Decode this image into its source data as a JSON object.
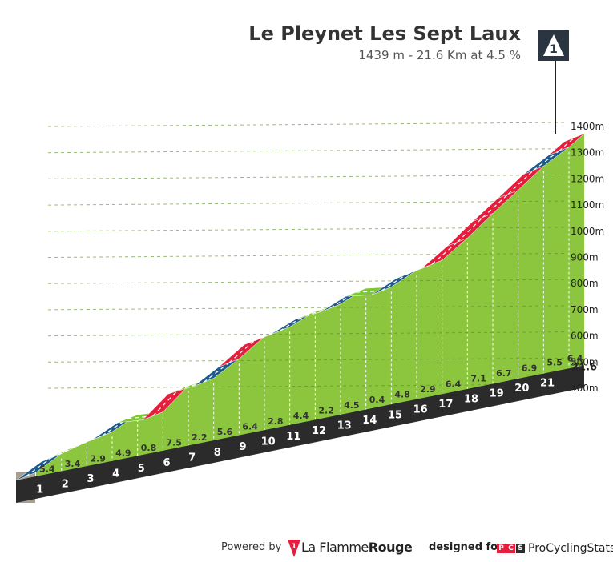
{
  "header": {
    "title": "Le Pleynet Les Sept Laux",
    "subtitle": "1439 m - 21.6 Km at 4.5 %",
    "category": "1"
  },
  "chart_data": {
    "type": "area",
    "title": "Le Pleynet Les Sept Laux",
    "xlabel": "",
    "ylabel": "",
    "km_labels": [
      "1",
      "2",
      "3",
      "4",
      "5",
      "6",
      "7",
      "8",
      "9",
      "10",
      "11",
      "12",
      "13",
      "14",
      "15",
      "16",
      "17",
      "18",
      "19",
      "20",
      "21"
    ],
    "end_label": "21.6",
    "gradients": [
      5.4,
      3.4,
      2.9,
      4.9,
      0.8,
      7.5,
      2.2,
      5.6,
      6.4,
      2.8,
      4.4,
      2.2,
      4.5,
      0.4,
      4.8,
      2.9,
      6.4,
      7.1,
      6.7,
      6.9,
      5.5,
      6.4
    ],
    "gradient_labels": [
      "5.4",
      "3.4",
      "2.9",
      "4.9",
      "0.8",
      "7.5",
      "2.2",
      "5.6",
      "6.4",
      "2.8",
      "4.4",
      "2.2",
      "4.5",
      "0.4",
      "4.8",
      "2.9",
      "6.4",
      "7.1",
      "6.7",
      "6.9",
      "5.5",
      "6.4"
    ],
    "y_ticks": [
      "400m",
      "500m",
      "600m",
      "700m",
      "800m",
      "900m",
      "1000m",
      "1100m",
      "1200m",
      "1300m",
      "1400m"
    ],
    "ylim": [
      400,
      1400
    ],
    "summit_altitude_m": 1439,
    "distance_km": 21.6,
    "grid": true,
    "colors": {
      "easy": "#7dc832",
      "medium": "#1e5a8c",
      "hard": "#e41e3c",
      "front": "#8cc63f",
      "base": "#2b2b2b",
      "side": "#a89e8c"
    }
  },
  "footer": {
    "powered_by": "Powered by",
    "flamme_light": "La Flamme",
    "flamme_bold": "Rouge",
    "designed_for": "designed for",
    "pcs_letters": [
      "P",
      "C",
      "S"
    ],
    "pcs_name": "ProCyclingStats",
    "pcs_colors": [
      "#e41e3c",
      "#e41e3c",
      "#2b2b2b"
    ]
  }
}
